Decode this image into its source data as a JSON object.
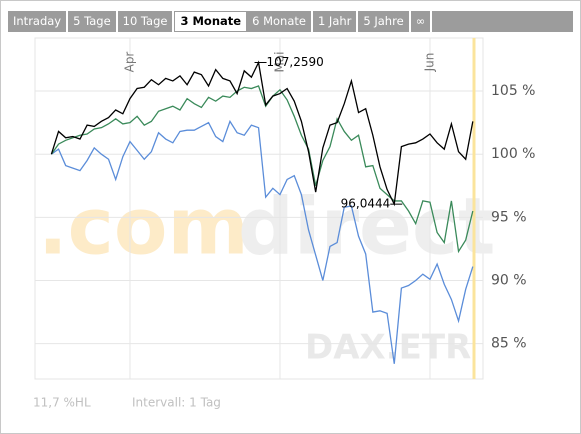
{
  "tabs": [
    {
      "label": "Intraday"
    },
    {
      "label": "5 Tage"
    },
    {
      "label": "10 Tage"
    },
    {
      "label": "3 Monate",
      "active": true
    },
    {
      "label": "6 Monate"
    },
    {
      "label": "1 Jahr"
    },
    {
      "label": "5 Jahre"
    },
    {
      "label": "∞"
    }
  ],
  "chart_data": {
    "type": "line",
    "categories": [
      null,
      null,
      null,
      null,
      null,
      null,
      null,
      null,
      null,
      null,
      null,
      "Apr",
      null,
      null,
      null,
      null,
      null,
      null,
      null,
      null,
      null,
      null,
      null,
      null,
      null,
      null,
      null,
      null,
      null,
      null,
      null,
      null,
      "Mai",
      null,
      null,
      null,
      null,
      null,
      null,
      null,
      null,
      null,
      null,
      null,
      null,
      null,
      null,
      null,
      null,
      null,
      null,
      null,
      null,
      "Jun",
      null,
      null,
      null,
      null,
      null,
      null
    ],
    "series": [
      {
        "color": "#000000",
        "values": [
          100,
          101.8,
          101.3,
          101.4,
          101.2,
          102.3,
          102.2,
          102.6,
          102.9,
          103.5,
          103.2,
          104.4,
          105.2,
          105.3,
          105.9,
          105.5,
          106.0,
          105.8,
          106.2,
          105.5,
          106.5,
          106.3,
          105.4,
          106.7,
          106.0,
          105.8,
          104.8,
          106.6,
          106.1,
          107.259,
          103.9,
          104.6,
          104.8,
          105.2,
          104.2,
          102.6,
          100.2,
          97.0,
          100.5,
          102.3,
          102.5,
          104.0,
          105.8,
          103.3,
          103.6,
          101.5,
          99.0,
          97.2,
          96.0444,
          100.6,
          100.8,
          100.9,
          101.2,
          101.6,
          100.9,
          100.4,
          102.4,
          100.2,
          99.6,
          102.6
        ]
      },
      {
        "color": "#3a8a5a",
        "values": [
          100,
          100.8,
          101.1,
          101.3,
          101.5,
          101.6,
          102.0,
          102.1,
          102.4,
          102.8,
          102.4,
          102.5,
          103.0,
          102.3,
          102.6,
          103.4,
          103.6,
          103.8,
          103.5,
          104.4,
          104.0,
          103.7,
          104.5,
          104.2,
          104.6,
          104.5,
          105.0,
          105.3,
          105.2,
          105.4,
          103.8,
          104.6,
          105.1,
          104.3,
          103.0,
          101.5,
          100.4,
          97.5,
          99.5,
          100.6,
          102.8,
          101.8,
          101.1,
          101.5,
          99.0,
          99.1,
          97.3,
          96.8,
          96.3,
          96.3,
          95.5,
          94.5,
          96.3,
          96.2,
          93.8,
          93.0,
          96.3,
          92.3,
          93.2,
          95.5
        ]
      },
      {
        "color": "#5b8dd9",
        "values": [
          100,
          100.4,
          99.1,
          98.9,
          98.7,
          99.5,
          100.5,
          100.0,
          99.6,
          98.0,
          99.8,
          101.0,
          100.3,
          99.6,
          100.2,
          101.7,
          101.2,
          100.9,
          101.8,
          101.9,
          101.9,
          102.2,
          102.5,
          101.4,
          101.0,
          102.6,
          101.7,
          101.5,
          102.3,
          102.1,
          96.6,
          97.3,
          96.8,
          98.0,
          98.3,
          96.8,
          94.0,
          92.0,
          90.0,
          92.7,
          93.0,
          95.8,
          95.9,
          93.5,
          92.1,
          87.5,
          87.6,
          87.4,
          83.4,
          89.4,
          89.6,
          90.0,
          90.5,
          90.1,
          91.3,
          89.7,
          88.5,
          86.8,
          89.3,
          91.1
        ]
      }
    ],
    "ylim": [
      82.2,
      109.2
    ],
    "yticks": [
      {
        "value": 85,
        "label": "85 %"
      },
      {
        "value": 90,
        "label": "90 %"
      },
      {
        "value": 95,
        "label": "95 %"
      },
      {
        "value": 100,
        "label": "100 %"
      },
      {
        "value": 105,
        "label": "105 %"
      }
    ],
    "grid": true,
    "annotations": [
      {
        "value": 107.259,
        "label": "107,2590"
      },
      {
        "value": 96.0444,
        "label": "96,0444"
      }
    ],
    "watermark": [
      ".com",
      "direct"
    ],
    "exchange": "DAX.ETR"
  },
  "footer": {
    "range": "11,7 %HL",
    "interval": "Intervall: 1 Tag"
  }
}
